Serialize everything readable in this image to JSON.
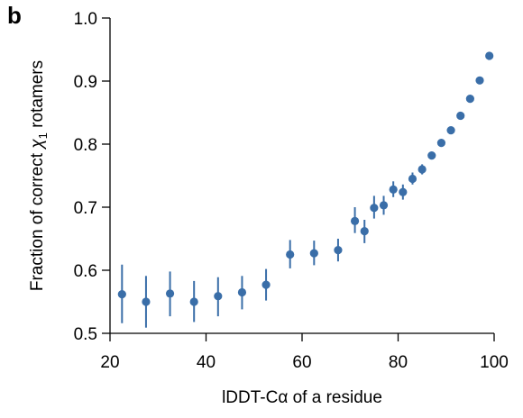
{
  "panel_label": "b",
  "chart_data": {
    "type": "scatter",
    "title": "",
    "xlabel": "lDDT-Cα of a residue",
    "ylabel_parts": [
      "Fraction of correct ",
      "χ",
      "1",
      " rotamers"
    ],
    "xlim": [
      20,
      100
    ],
    "ylim": [
      0.5,
      1.0
    ],
    "x_ticks": [
      20,
      40,
      60,
      80,
      100
    ],
    "x_tick_labels": [
      "20",
      "40",
      "60",
      "80",
      "100"
    ],
    "y_ticks": [
      0.5,
      0.6,
      0.7,
      0.8,
      0.9,
      1.0
    ],
    "y_tick_labels": [
      "0.5",
      "0.6",
      "0.7",
      "0.8",
      "0.9",
      "1.0"
    ],
    "grid": false,
    "marker_color": "#3a6ea8",
    "points": [
      {
        "x": 22.5,
        "y": 0.562,
        "lo": 0.516,
        "hi": 0.609
      },
      {
        "x": 27.5,
        "y": 0.55,
        "lo": 0.509,
        "hi": 0.591
      },
      {
        "x": 32.5,
        "y": 0.563,
        "lo": 0.527,
        "hi": 0.598
      },
      {
        "x": 37.5,
        "y": 0.55,
        "lo": 0.518,
        "hi": 0.583
      },
      {
        "x": 42.5,
        "y": 0.559,
        "lo": 0.527,
        "hi": 0.589
      },
      {
        "x": 47.5,
        "y": 0.565,
        "lo": 0.538,
        "hi": 0.591
      },
      {
        "x": 52.5,
        "y": 0.577,
        "lo": 0.552,
        "hi": 0.602
      },
      {
        "x": 57.5,
        "y": 0.625,
        "lo": 0.603,
        "hi": 0.648
      },
      {
        "x": 62.5,
        "y": 0.627,
        "lo": 0.608,
        "hi": 0.647
      },
      {
        "x": 67.5,
        "y": 0.632,
        "lo": 0.614,
        "hi": 0.65
      },
      {
        "x": 71.0,
        "y": 0.678,
        "lo": 0.659,
        "hi": 0.7
      },
      {
        "x": 73.0,
        "y": 0.662,
        "lo": 0.643,
        "hi": 0.68
      },
      {
        "x": 75.0,
        "y": 0.699,
        "lo": 0.682,
        "hi": 0.718
      },
      {
        "x": 77.0,
        "y": 0.703,
        "lo": 0.688,
        "hi": 0.718
      },
      {
        "x": 79.0,
        "y": 0.728,
        "lo": 0.716,
        "hi": 0.741
      },
      {
        "x": 81.0,
        "y": 0.724,
        "lo": 0.712,
        "hi": 0.736
      },
      {
        "x": 83.0,
        "y": 0.745,
        "lo": 0.736,
        "hi": 0.755
      },
      {
        "x": 85.0,
        "y": 0.76,
        "lo": 0.752,
        "hi": 0.768
      },
      {
        "x": 87.0,
        "y": 0.782,
        "lo": 0.776,
        "hi": 0.788
      },
      {
        "x": 89.0,
        "y": 0.802,
        "lo": 0.797,
        "hi": 0.807
      },
      {
        "x": 91.0,
        "y": 0.822,
        "lo": 0.818,
        "hi": 0.826
      },
      {
        "x": 93.0,
        "y": 0.845,
        "lo": 0.842,
        "hi": 0.848
      },
      {
        "x": 95.0,
        "y": 0.872,
        "lo": 0.87,
        "hi": 0.874
      },
      {
        "x": 97.0,
        "y": 0.901,
        "lo": 0.899,
        "hi": 0.903
      },
      {
        "x": 99.0,
        "y": 0.94,
        "lo": 0.939,
        "hi": 0.941
      }
    ]
  }
}
